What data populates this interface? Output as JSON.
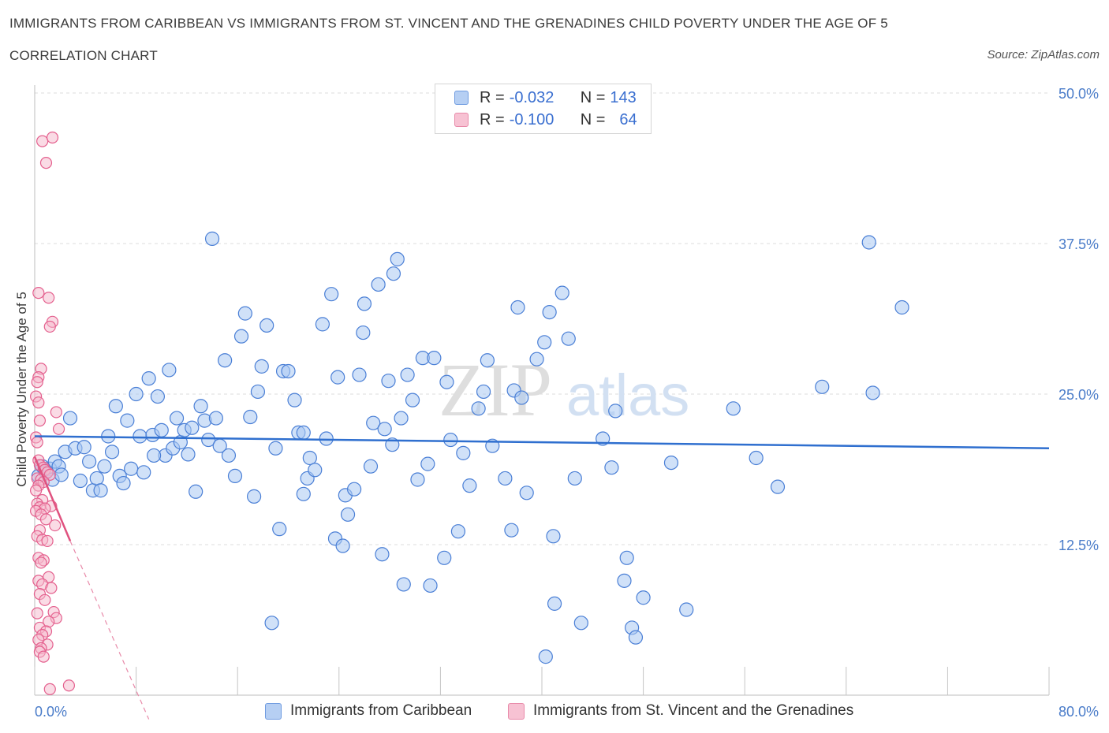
{
  "header": {
    "title": "IMMIGRANTS FROM CARIBBEAN VS IMMIGRANTS FROM ST. VINCENT AND THE GRENADINES CHILD POVERTY UNDER THE AGE OF 5",
    "subtitle": "CORRELATION CHART",
    "source": "Source: ZipAtlas.com"
  },
  "watermark": {
    "zip": "ZIP",
    "atlas": "atlas"
  },
  "legend": {
    "rows": [
      {
        "r_label": "R = ",
        "r_value": "-0.032",
        "n_label": "N = ",
        "n_value": "143"
      },
      {
        "r_label": "R = ",
        "r_value": "-0.100",
        "n_label": "N = ",
        "n_value": "64"
      }
    ]
  },
  "chart_data": {
    "type": "scatter",
    "title": "IMMIGRANTS FROM CARIBBEAN VS IMMIGRANTS FROM ST. VINCENT AND THE GRENADINES CHILD POVERTY UNDER THE AGE OF 5",
    "ylabel": "Child Poverty Under the Age of 5",
    "xlim": [
      0,
      80
    ],
    "ylim": [
      0,
      50
    ],
    "x_tick_labels": [
      "0.0%",
      "80.0%"
    ],
    "y_ticks": [
      12.5,
      25,
      37.5,
      50
    ],
    "y_tick_labels": [
      "12.5%",
      "25.0%",
      "37.5%",
      "50.0%"
    ],
    "grid": "horizontal dashed",
    "legend_placement": "top-center and bottom",
    "colors": {
      "blue": "#4a7fd6",
      "blue_fill": "#aac8f2",
      "pink": "#e4608e",
      "pink_fill": "#f5b8cc",
      "tick": "#4a7cc9"
    },
    "series": [
      {
        "name": "Immigrants from Caribbean",
        "color": "#4a7fd6",
        "R": -0.032,
        "N": 143,
        "trend": {
          "x": [
            0,
            80
          ],
          "y": [
            21.5,
            20.5
          ]
        },
        "points": [
          [
            0.3,
            18.2
          ],
          [
            0.6,
            19.0
          ],
          [
            0.9,
            18.5
          ],
          [
            1.2,
            18.8
          ],
          [
            1.4,
            17.9
          ],
          [
            1.6,
            19.4
          ],
          [
            1.9,
            19.0
          ],
          [
            2.1,
            18.3
          ],
          [
            2.4,
            20.2
          ],
          [
            2.8,
            23.0
          ],
          [
            3.2,
            20.5
          ],
          [
            3.6,
            17.8
          ],
          [
            3.9,
            20.6
          ],
          [
            4.3,
            19.4
          ],
          [
            4.6,
            17.0
          ],
          [
            4.9,
            18.0
          ],
          [
            5.2,
            17.0
          ],
          [
            5.5,
            19.0
          ],
          [
            5.8,
            21.5
          ],
          [
            6.1,
            20.2
          ],
          [
            6.4,
            24.0
          ],
          [
            6.7,
            18.2
          ],
          [
            7.0,
            17.6
          ],
          [
            7.3,
            22.8
          ],
          [
            7.6,
            18.8
          ],
          [
            8.0,
            25.0
          ],
          [
            8.3,
            21.5
          ],
          [
            8.6,
            18.5
          ],
          [
            9.0,
            26.3
          ],
          [
            9.3,
            21.6
          ],
          [
            9.7,
            24.8
          ],
          [
            10.0,
            22.0
          ],
          [
            10.3,
            19.9
          ],
          [
            10.6,
            27.0
          ],
          [
            10.9,
            20.5
          ],
          [
            11.2,
            23.0
          ],
          [
            11.5,
            21.0
          ],
          [
            11.8,
            22.0
          ],
          [
            12.1,
            20.0
          ],
          [
            12.4,
            22.2
          ],
          [
            12.7,
            16.9
          ],
          [
            13.1,
            24.0
          ],
          [
            13.4,
            22.8
          ],
          [
            13.7,
            21.2
          ],
          [
            14.0,
            37.9
          ],
          [
            14.3,
            23.0
          ],
          [
            14.6,
            20.7
          ],
          [
            15.0,
            27.8
          ],
          [
            15.3,
            19.9
          ],
          [
            15.8,
            18.2
          ],
          [
            16.3,
            29.8
          ],
          [
            16.6,
            31.7
          ],
          [
            17.0,
            23.1
          ],
          [
            17.3,
            16.5
          ],
          [
            17.6,
            25.2
          ],
          [
            17.9,
            27.3
          ],
          [
            18.3,
            30.7
          ],
          [
            18.7,
            6.0
          ],
          [
            19.0,
            20.5
          ],
          [
            19.3,
            13.8
          ],
          [
            19.6,
            26.9
          ],
          [
            20.0,
            26.9
          ],
          [
            20.5,
            24.5
          ],
          [
            20.8,
            21.8
          ],
          [
            21.2,
            16.7
          ],
          [
            21.5,
            18.0
          ],
          [
            21.7,
            19.7
          ],
          [
            22.1,
            18.7
          ],
          [
            22.7,
            30.8
          ],
          [
            23.0,
            21.3
          ],
          [
            23.4,
            33.3
          ],
          [
            23.7,
            13.0
          ],
          [
            23.9,
            26.4
          ],
          [
            24.3,
            12.4
          ],
          [
            24.5,
            16.6
          ],
          [
            24.7,
            15.0
          ],
          [
            25.2,
            17.1
          ],
          [
            25.6,
            26.6
          ],
          [
            25.9,
            30.1
          ],
          [
            26.0,
            32.5
          ],
          [
            26.5,
            19.0
          ],
          [
            26.7,
            22.6
          ],
          [
            27.1,
            34.1
          ],
          [
            27.4,
            11.7
          ],
          [
            27.6,
            22.1
          ],
          [
            27.9,
            26.1
          ],
          [
            28.2,
            20.8
          ],
          [
            28.3,
            35.0
          ],
          [
            28.6,
            36.2
          ],
          [
            28.9,
            23.0
          ],
          [
            29.1,
            9.2
          ],
          [
            29.4,
            26.6
          ],
          [
            29.8,
            24.5
          ],
          [
            30.2,
            17.9
          ],
          [
            30.6,
            28.0
          ],
          [
            31.0,
            19.2
          ],
          [
            31.2,
            9.1
          ],
          [
            31.5,
            28.0
          ],
          [
            32.3,
            11.4
          ],
          [
            32.5,
            26.0
          ],
          [
            32.8,
            21.2
          ],
          [
            33.4,
            13.6
          ],
          [
            33.8,
            20.1
          ],
          [
            34.3,
            17.4
          ],
          [
            35.0,
            23.8
          ],
          [
            35.4,
            25.2
          ],
          [
            35.7,
            27.8
          ],
          [
            36.1,
            20.7
          ],
          [
            37.1,
            18.0
          ],
          [
            37.6,
            13.7
          ],
          [
            37.8,
            25.3
          ],
          [
            38.1,
            32.2
          ],
          [
            38.4,
            24.7
          ],
          [
            38.8,
            16.8
          ],
          [
            39.6,
            27.9
          ],
          [
            40.2,
            29.3
          ],
          [
            40.6,
            31.8
          ],
          [
            40.9,
            13.2
          ],
          [
            41.0,
            7.6
          ],
          [
            41.6,
            33.4
          ],
          [
            42.1,
            29.6
          ],
          [
            42.6,
            18.0
          ],
          [
            43.1,
            6.0
          ],
          [
            44.8,
            21.3
          ],
          [
            45.5,
            18.9
          ],
          [
            45.8,
            23.6
          ],
          [
            46.5,
            9.5
          ],
          [
            46.7,
            11.4
          ],
          [
            47.1,
            5.6
          ],
          [
            47.4,
            4.8
          ],
          [
            48.0,
            8.1
          ],
          [
            50.2,
            19.3
          ],
          [
            51.4,
            7.1
          ],
          [
            55.1,
            23.8
          ],
          [
            56.9,
            19.7
          ],
          [
            58.6,
            17.3
          ],
          [
            62.1,
            25.6
          ],
          [
            65.8,
            37.6
          ],
          [
            66.1,
            25.1
          ],
          [
            68.4,
            32.2
          ],
          [
            40.3,
            3.2
          ],
          [
            21.2,
            21.8
          ],
          [
            9.4,
            19.9
          ]
        ]
      },
      {
        "name": "Immigrants from St. Vincent and the Grenadines",
        "color": "#e4608e",
        "R": -0.1,
        "N": 64,
        "trend": {
          "x": [
            0,
            2.8
          ],
          "y": [
            19.8,
            12.8
          ],
          "dashed_extension": {
            "x": [
              2.8,
              9
            ],
            "y": [
              12.8,
              -2
            ]
          }
        },
        "points": [
          [
            0.6,
            46.0
          ],
          [
            1.4,
            46.3
          ],
          [
            0.9,
            44.2
          ],
          [
            0.3,
            33.4
          ],
          [
            1.1,
            33.0
          ],
          [
            1.4,
            31.0
          ],
          [
            1.2,
            30.6
          ],
          [
            0.5,
            27.1
          ],
          [
            0.3,
            26.4
          ],
          [
            0.2,
            26.0
          ],
          [
            0.1,
            24.8
          ],
          [
            0.3,
            24.3
          ],
          [
            1.7,
            23.5
          ],
          [
            0.4,
            22.8
          ],
          [
            1.9,
            22.1
          ],
          [
            0.1,
            21.4
          ],
          [
            0.2,
            21.0
          ],
          [
            0.3,
            19.5
          ],
          [
            0.4,
            19.1
          ],
          [
            0.7,
            18.9
          ],
          [
            0.8,
            18.7
          ],
          [
            1.0,
            18.5
          ],
          [
            1.2,
            18.3
          ],
          [
            0.2,
            18.0
          ],
          [
            0.5,
            17.9
          ],
          [
            0.7,
            17.7
          ],
          [
            0.3,
            17.4
          ],
          [
            0.6,
            16.2
          ],
          [
            0.2,
            15.9
          ],
          [
            1.3,
            15.7
          ],
          [
            0.4,
            15.6
          ],
          [
            0.8,
            15.5
          ],
          [
            0.1,
            15.3
          ],
          [
            0.5,
            15.0
          ],
          [
            0.9,
            14.6
          ],
          [
            1.6,
            14.1
          ],
          [
            0.4,
            13.7
          ],
          [
            0.2,
            13.2
          ],
          [
            0.6,
            12.9
          ],
          [
            1.0,
            12.8
          ],
          [
            0.3,
            11.4
          ],
          [
            0.7,
            11.2
          ],
          [
            0.5,
            11.0
          ],
          [
            1.1,
            9.8
          ],
          [
            0.3,
            9.5
          ],
          [
            0.6,
            9.2
          ],
          [
            1.3,
            8.9
          ],
          [
            0.4,
            8.4
          ],
          [
            0.8,
            7.9
          ],
          [
            1.5,
            6.9
          ],
          [
            0.2,
            6.8
          ],
          [
            1.7,
            6.4
          ],
          [
            1.1,
            6.1
          ],
          [
            0.4,
            5.6
          ],
          [
            0.9,
            5.3
          ],
          [
            0.6,
            5.0
          ],
          [
            0.3,
            4.6
          ],
          [
            1.0,
            4.2
          ],
          [
            0.5,
            3.9
          ],
          [
            0.4,
            3.6
          ],
          [
            0.7,
            3.2
          ],
          [
            2.7,
            0.8
          ],
          [
            1.2,
            0.5
          ],
          [
            0.1,
            17.0
          ]
        ]
      }
    ]
  }
}
